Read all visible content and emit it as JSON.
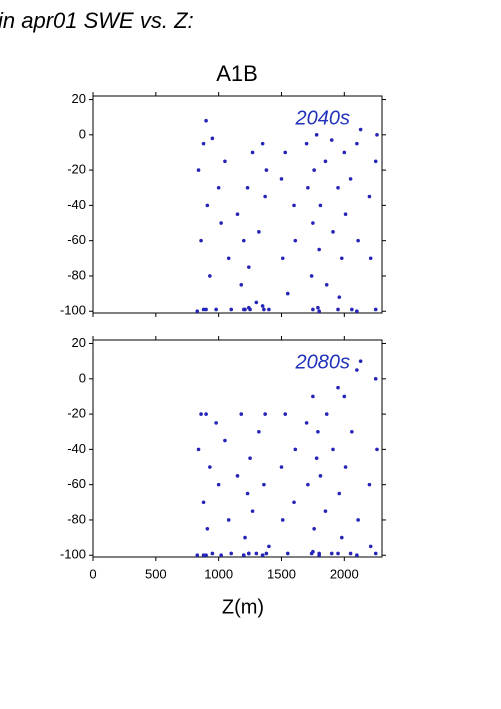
{
  "header": "in apr01 SWE vs. Z:",
  "chart_data": [
    {
      "type": "scatter",
      "title": "A1B",
      "annotation": "2040s",
      "x": [
        830,
        840,
        860,
        880,
        900,
        910,
        930,
        950,
        980,
        1000,
        1020,
        1050,
        1080,
        1100,
        1150,
        1180,
        1200,
        1210,
        1230,
        1240,
        1250,
        1270,
        1300,
        1320,
        1350,
        1360,
        1370,
        1380,
        1400,
        1500,
        1510,
        1530,
        1550,
        1600,
        1610,
        1700,
        1710,
        1740,
        1750,
        1760,
        1780,
        1790,
        1800,
        1810,
        1850,
        1860,
        1900,
        1910,
        1950,
        1960,
        1980,
        2000,
        2010,
        2050,
        2060,
        2100,
        2110,
        2130,
        2200,
        2210,
        2250,
        2260,
        880,
        900,
        1200,
        1240,
        1350,
        1750,
        1800,
        1950,
        2100,
        2250
      ],
      "series": [
        {
          "color": "#2424b8",
          "values": [
            -100,
            -20,
            -60,
            -5,
            8,
            -40,
            -80,
            -2,
            -99,
            -30,
            -50,
            -15,
            -70,
            -99,
            -45,
            -85,
            -60,
            -99,
            -30,
            -75,
            -99,
            -10,
            -95,
            -55,
            -5,
            -99,
            -35,
            -20,
            -99,
            -25,
            -70,
            -10,
            -90,
            -40,
            -60,
            -5,
            -30,
            -80,
            -50,
            -20,
            0,
            -98,
            -65,
            -40,
            -15,
            -85,
            -3,
            -55,
            -30,
            -92,
            -70,
            -10,
            -45,
            -25,
            -99,
            -5,
            -60,
            3,
            -35,
            -70,
            -15,
            0,
            -99,
            -99,
            -99,
            -98,
            -97,
            -99,
            -100,
            -99,
            -100,
            -99
          ]
        }
      ],
      "xlim": [
        0,
        2300
      ],
      "xticks": [
        0,
        500,
        1000,
        1500,
        2000
      ],
      "show_xtick_labels": false,
      "ylim": [
        -101,
        22
      ],
      "yticks": [
        -100,
        -80,
        -60,
        -40,
        -20,
        0,
        20
      ]
    },
    {
      "type": "scatter",
      "annotation": "2080s",
      "xlabel": "Z(m)",
      "x": [
        830,
        840,
        860,
        880,
        900,
        910,
        930,
        950,
        980,
        1000,
        1020,
        1050,
        1080,
        1100,
        1150,
        1180,
        1200,
        1210,
        1230,
        1240,
        1250,
        1270,
        1300,
        1320,
        1350,
        1360,
        1370,
        1380,
        1400,
        1500,
        1510,
        1530,
        1550,
        1600,
        1610,
        1700,
        1710,
        1740,
        1750,
        1760,
        1780,
        1790,
        1800,
        1810,
        1850,
        1860,
        1900,
        1910,
        1950,
        1960,
        1980,
        2000,
        2010,
        2050,
        2060,
        2100,
        2110,
        2130,
        2200,
        2210,
        2250,
        2260,
        880,
        900,
        1200,
        1240,
        1350,
        1750,
        1800,
        1950,
        2100,
        2250
      ],
      "series": [
        {
          "color": "#2424b8",
          "values": [
            -100,
            -40,
            -20,
            -70,
            -20,
            -85,
            -50,
            -99,
            -25,
            -60,
            -100,
            -35,
            -80,
            -99,
            -55,
            -20,
            -100,
            -90,
            -65,
            -99,
            -45,
            -75,
            -99,
            -30,
            -100,
            -60,
            -20,
            -99,
            -95,
            -50,
            -80,
            -20,
            -99,
            -70,
            -40,
            -25,
            -60,
            -99,
            -10,
            -85,
            -45,
            -30,
            -99,
            -55,
            -75,
            -20,
            -99,
            -40,
            -5,
            -65,
            -90,
            -10,
            -50,
            -99,
            -30,
            5,
            -80,
            10,
            -60,
            -95,
            0,
            -40,
            -100,
            -100,
            -100,
            -99,
            -100,
            -98,
            -100,
            -99,
            -100,
            -99
          ]
        }
      ],
      "xlim": [
        0,
        2300
      ],
      "xticks": [
        0,
        500,
        1000,
        1500,
        2000
      ],
      "show_xtick_labels": true,
      "ylim": [
        -101,
        22
      ],
      "yticks": [
        -100,
        -80,
        -60,
        -40,
        -20,
        0,
        20
      ]
    }
  ]
}
